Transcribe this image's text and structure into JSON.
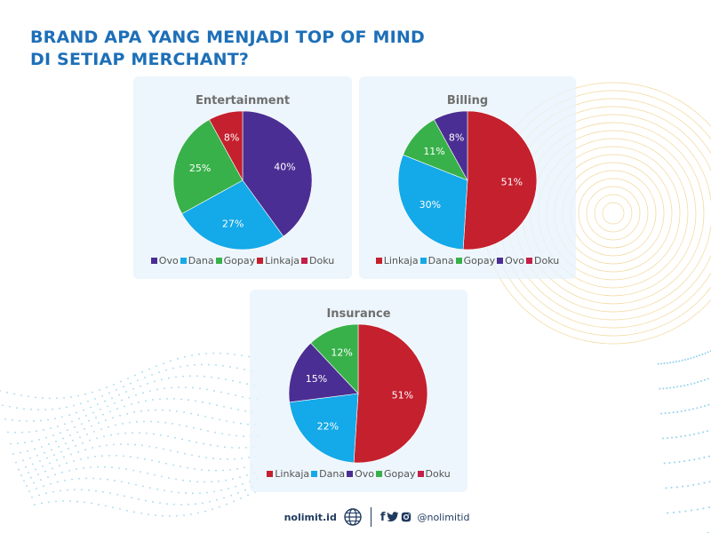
{
  "title": {
    "line1": "BRAND APA YANG MENJADI TOP OF MIND",
    "line2": "DI SETIAP MERCHANT?"
  },
  "colors": {
    "title": "#1d6fb8",
    "Ovo": "#4b2e93",
    "Dana": "#14a9e8",
    "Gopay": "#38b14a",
    "Linkaja": "#c4202e",
    "Doku": "#c41f47"
  },
  "chart_data": [
    {
      "type": "pie",
      "title": "Entertainment",
      "slices": [
        {
          "name": "Ovo",
          "value": 40,
          "label": "40%"
        },
        {
          "name": "Dana",
          "value": 27,
          "label": "27%"
        },
        {
          "name": "Gopay",
          "value": 25,
          "label": "25%"
        },
        {
          "name": "Linkaja",
          "value": 8,
          "label": "8%"
        },
        {
          "name": "Doku",
          "value": 0,
          "label": ""
        }
      ],
      "legend": [
        "Ovo",
        "Dana",
        "Gopay",
        "Linkaja",
        "Doku"
      ],
      "legend_position": "bottom"
    },
    {
      "type": "pie",
      "title": "Billing",
      "slices": [
        {
          "name": "Linkaja",
          "value": 51,
          "label": "51%"
        },
        {
          "name": "Dana",
          "value": 30,
          "label": "30%"
        },
        {
          "name": "Gopay",
          "value": 11,
          "label": "11%"
        },
        {
          "name": "Ovo",
          "value": 8,
          "label": "8%"
        },
        {
          "name": "Doku",
          "value": 0,
          "label": ""
        }
      ],
      "legend": [
        "Linkaja",
        "Dana",
        "Gopay",
        "Ovo",
        "Doku"
      ],
      "legend_position": "bottom"
    },
    {
      "type": "pie",
      "title": "Insurance",
      "slices": [
        {
          "name": "Linkaja",
          "value": 51,
          "label": "51%"
        },
        {
          "name": "Dana",
          "value": 22,
          "label": "22%"
        },
        {
          "name": "Ovo",
          "value": 15,
          "label": "15%"
        },
        {
          "name": "Gopay",
          "value": 12,
          "label": "12%"
        },
        {
          "name": "Doku",
          "value": 0,
          "label": ""
        }
      ],
      "legend": [
        "Linkaja",
        "Dana",
        "Ovo",
        "Gopay",
        "Doku"
      ],
      "legend_position": "bottom"
    }
  ],
  "footer": {
    "site": "nolimit.id",
    "globe_icon": "globe-icon",
    "facebook_glyph": "f",
    "facebook_icon": "facebook-icon",
    "twitter_icon": "twitter-icon",
    "instagram_icon": "instagram-icon",
    "handle": "@nolimitid"
  }
}
